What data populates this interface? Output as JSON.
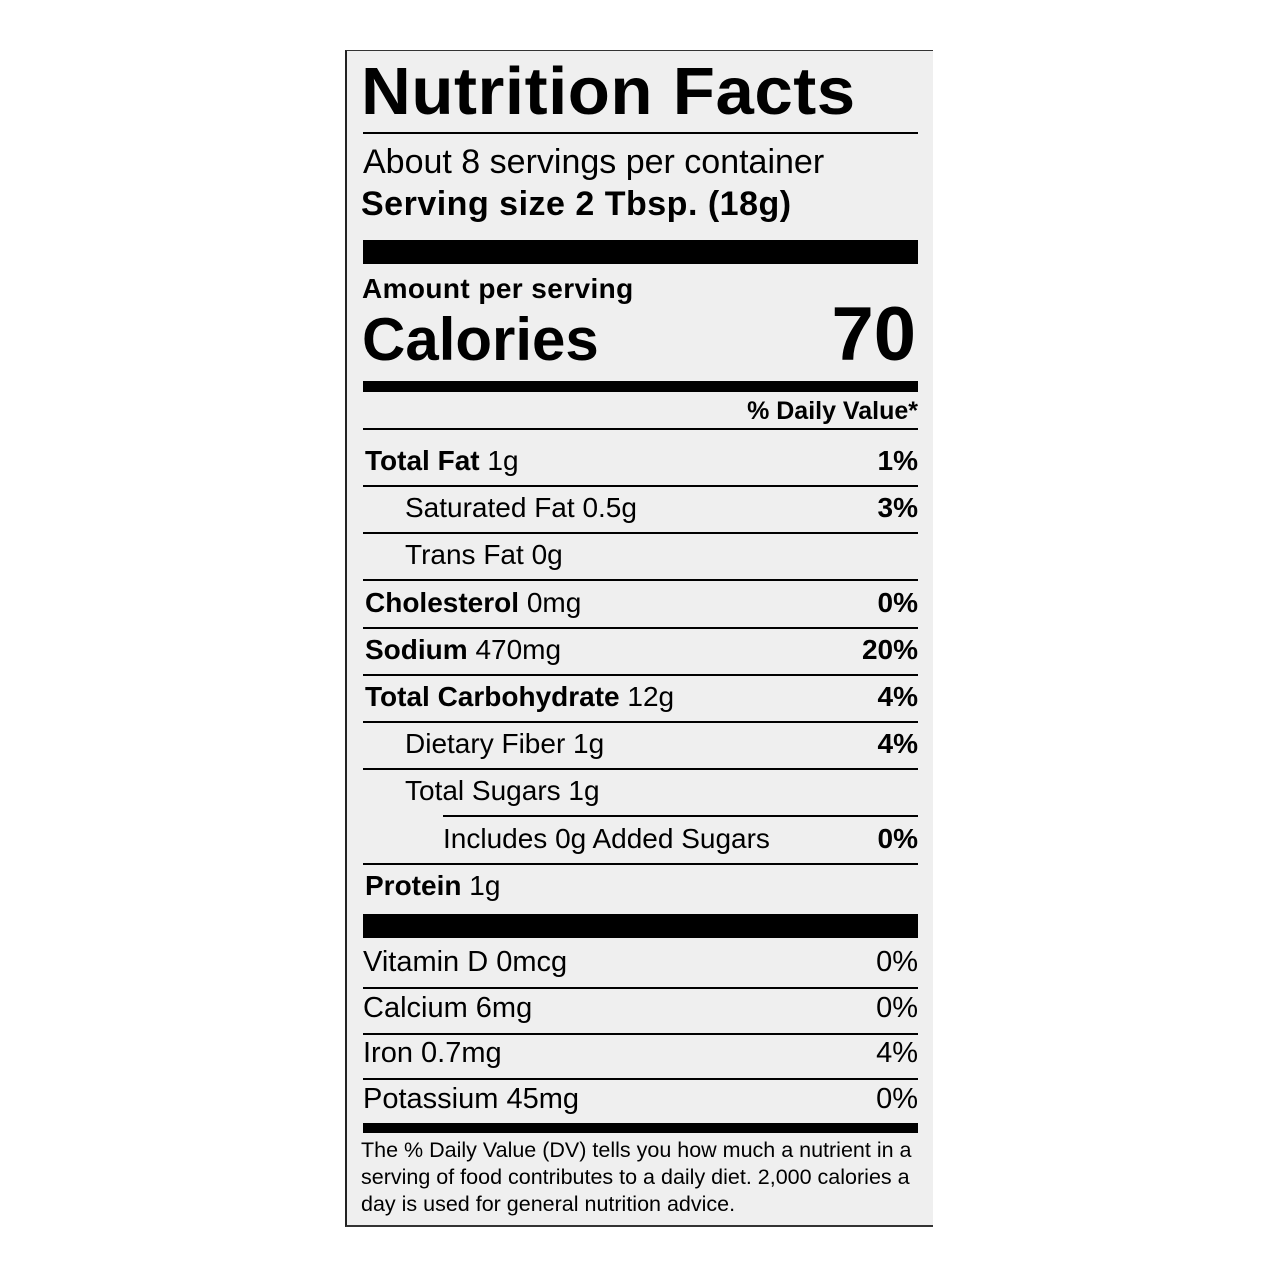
{
  "title": "Nutrition Facts",
  "servings_per_container": "About 8 servings per container",
  "serving_size": "Serving size  2 Tbsp. (18g)",
  "amount_per_serving": "Amount per serving",
  "calories_label": "Calories",
  "calories_value": "70",
  "daily_value_header": "% Daily Value*",
  "nutrients": [
    {
      "name": "Total Fat",
      "amount": "1g",
      "dv": "1%",
      "bold": true,
      "indent": 0
    },
    {
      "name": "Saturated Fat",
      "amount": "0.5g",
      "dv": "3%",
      "bold": false,
      "indent": 1
    },
    {
      "name": "Trans Fat",
      "amount": "0g",
      "dv": "",
      "bold": false,
      "indent": 1
    },
    {
      "name": "Cholesterol",
      "amount": "0mg",
      "dv": "0%",
      "bold": true,
      "indent": 0
    },
    {
      "name": "Sodium",
      "amount": "470mg",
      "dv": "20%",
      "bold": true,
      "indent": 0
    },
    {
      "name": "Total Carbohydrate",
      "amount": "12g",
      "dv": "4%",
      "bold": true,
      "indent": 0
    },
    {
      "name": "Dietary Fiber",
      "amount": "1g",
      "dv": "4%",
      "bold": false,
      "indent": 1
    },
    {
      "name": "Total Sugars",
      "amount": "1g",
      "dv": "",
      "bold": false,
      "indent": 1
    },
    {
      "name": "Includes 0g Added Sugars",
      "amount": "",
      "dv": "0%",
      "bold": false,
      "indent": 2
    },
    {
      "name": "Protein",
      "amount": "1g",
      "dv": "",
      "bold": true,
      "indent": 0
    }
  ],
  "vitamins": [
    {
      "label": "Vitamin D 0mcg",
      "dv": "0%"
    },
    {
      "label": "Calcium 6mg",
      "dv": "0%"
    },
    {
      "label": "Iron 0.7mg",
      "dv": "4%"
    },
    {
      "label": "Potassium 45mg",
      "dv": "0%"
    }
  ],
  "footnote": "The % Daily Value (DV) tells you how much a nutrient in a serving of food contributes to a daily diet. 2,000 calories a day is used for general nutrition advice."
}
